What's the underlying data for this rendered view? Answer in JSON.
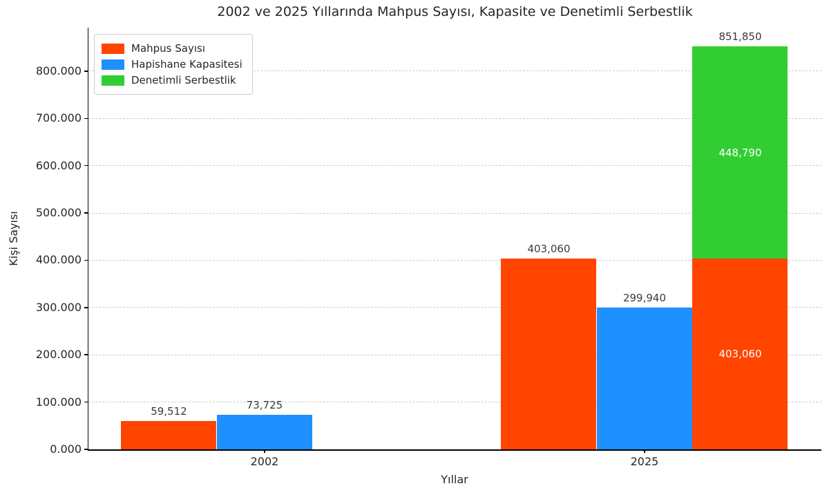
{
  "title": "2002 ve 2025 Yıllarında Mahpus Sayısı, Kapasite ve Denetimli Serbestlik",
  "x_axis": {
    "label": "Yıllar",
    "tick_labels": [
      "2002",
      "2025"
    ]
  },
  "y_axis": {
    "label": "Kişi Sayısı",
    "ticks": [
      {
        "value": 0,
        "label": "0.000"
      },
      {
        "value": 100000,
        "label": "100.000"
      },
      {
        "value": 200000,
        "label": "200.000"
      },
      {
        "value": 300000,
        "label": "300.000"
      },
      {
        "value": 400000,
        "label": "400.000"
      },
      {
        "value": 500000,
        "label": "500.000"
      },
      {
        "value": 600000,
        "label": "600.000"
      },
      {
        "value": 700000,
        "label": "700.000"
      },
      {
        "value": 800000,
        "label": "800.000"
      }
    ]
  },
  "legend": {
    "items": [
      {
        "label": "Mahpus Sayısı",
        "color": "#FF4500"
      },
      {
        "label": "Hapishane Kapasitesi",
        "color": "#1E90FF"
      },
      {
        "label": "Denetimli Serbestlik",
        "color": "#32CD32"
      }
    ]
  },
  "colors": {
    "mahpus": "#FF4500",
    "kapasite": "#1E90FF",
    "denetimli": "#32CD32",
    "grid": "#cccccc",
    "background": "#ffffff"
  },
  "chart_data": {
    "type": "bar",
    "title": "2002 ve 2025 Yıllarında Mahpus Sayısı, Kapasite ve Denetimli Serbestlik",
    "xlabel": "Yıllar",
    "ylabel": "Kişi Sayısı",
    "categories": [
      "2002",
      "2025"
    ],
    "ylim": [
      0,
      892000
    ],
    "grid": "horizontal dashed",
    "legend_position": "upper left",
    "series_note": "Third slot in 2025 is a stacked bar: Mahpus Sayısı + Denetimli Serbestlik; 2002 has no stacked bar",
    "groups": [
      {
        "category": "2002",
        "bars": [
          {
            "slot": 0,
            "series": "Mahpus Sayısı",
            "total": 59512,
            "total_label": "59,512",
            "segments": [
              {
                "series": "Mahpus Sayısı",
                "value": 59512,
                "color": "#FF4500"
              }
            ]
          },
          {
            "slot": 1,
            "series": "Hapishane Kapasitesi",
            "total": 73725,
            "total_label": "73,725",
            "segments": [
              {
                "series": "Hapishane Kapasitesi",
                "value": 73725,
                "color": "#1E90FF"
              }
            ]
          }
        ]
      },
      {
        "category": "2025",
        "bars": [
          {
            "slot": 0,
            "series": "Mahpus Sayısı",
            "total": 403060,
            "total_label": "403,060",
            "segments": [
              {
                "series": "Mahpus Sayısı",
                "value": 403060,
                "color": "#FF4500"
              }
            ]
          },
          {
            "slot": 1,
            "series": "Hapishane Kapasitesi",
            "total": 299940,
            "total_label": "299,940",
            "segments": [
              {
                "series": "Hapishane Kapasitesi",
                "value": 299940,
                "color": "#1E90FF"
              }
            ]
          },
          {
            "slot": 2,
            "series": "Mahpus Sayısı + Denetimli Serbestlik",
            "total": 851850,
            "total_label": "851,850",
            "segments": [
              {
                "series": "Mahpus Sayısı",
                "value": 403060,
                "color": "#FF4500",
                "label": "403,060"
              },
              {
                "series": "Denetimli Serbestlik",
                "value": 448790,
                "color": "#32CD32",
                "label": "448,790"
              }
            ]
          }
        ]
      }
    ]
  }
}
